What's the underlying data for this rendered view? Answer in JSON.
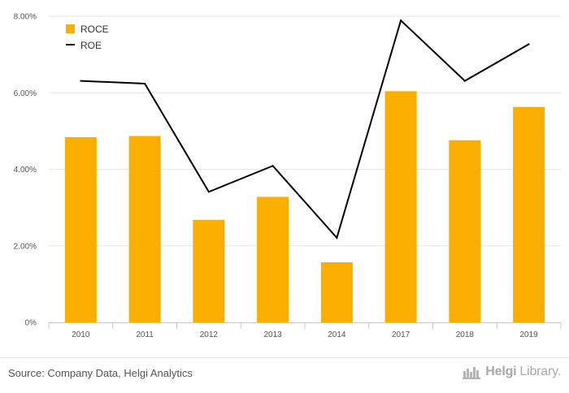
{
  "chart_data": {
    "type": "bar",
    "categories": [
      "2010",
      "2011",
      "2012",
      "2013",
      "2014",
      "2017",
      "2018",
      "2019"
    ],
    "series": [
      {
        "name": "ROCE",
        "type": "bar",
        "color": "#F9AE00",
        "values": [
          4.84,
          4.87,
          2.68,
          3.28,
          1.57,
          6.04,
          4.76,
          5.63
        ]
      },
      {
        "name": "ROE",
        "type": "line",
        "color": "#000000",
        "values": [
          6.31,
          6.24,
          3.41,
          4.09,
          2.21,
          7.89,
          6.31,
          7.27
        ]
      }
    ],
    "yticks": [
      "0%",
      "2.00%",
      "4.00%",
      "6.00%",
      "8.00%"
    ],
    "ylim": [
      0,
      8
    ],
    "grid": true,
    "legend": "top-left",
    "title": "",
    "xlabel": "",
    "ylabel": ""
  },
  "footer": {
    "source": "Source: Company Data, Helgi Analytics",
    "brand_icon": "helgi-library-logo-icon",
    "brand_strong": "Helgi",
    "brand_rest": "Library."
  }
}
